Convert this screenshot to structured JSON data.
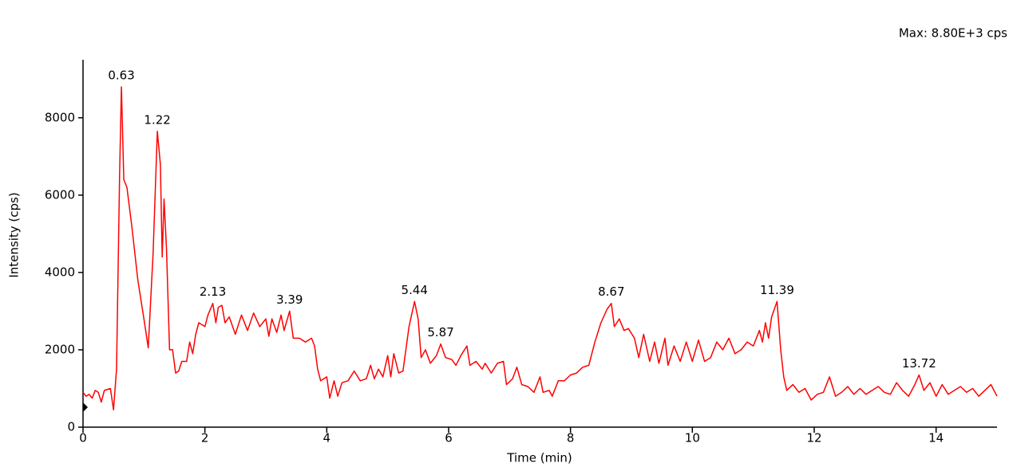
{
  "chart_data": {
    "type": "line",
    "max_label": "Max: 8.80E+3 cps",
    "x_label": "Time (min)",
    "y_label": "Intensity (cps)",
    "xlim": [
      0,
      15
    ],
    "ylim": [
      0,
      9500
    ],
    "xticks": [
      0,
      2,
      4,
      6,
      8,
      10,
      12,
      14
    ],
    "yticks": [
      0,
      2000,
      4000,
      6000,
      8000
    ],
    "x": [
      0,
      0.05,
      0.1,
      0.15,
      0.2,
      0.25,
      0.3,
      0.35,
      0.45,
      0.5,
      0.55,
      0.6,
      0.63,
      0.67,
      0.72,
      0.8,
      0.9,
      1.0,
      1.07,
      1.15,
      1.22,
      1.27,
      1.3,
      1.33,
      1.37,
      1.42,
      1.47,
      1.52,
      1.57,
      1.62,
      1.7,
      1.75,
      1.8,
      1.85,
      1.9,
      2.0,
      2.05,
      2.13,
      2.18,
      2.22,
      2.28,
      2.33,
      2.4,
      2.5,
      2.6,
      2.7,
      2.8,
      2.9,
      3.0,
      3.05,
      3.1,
      3.18,
      3.25,
      3.3,
      3.39,
      3.45,
      3.55,
      3.65,
      3.75,
      3.8,
      3.85,
      3.9,
      4.0,
      4.05,
      4.12,
      4.18,
      4.25,
      4.35,
      4.45,
      4.55,
      4.65,
      4.72,
      4.78,
      4.85,
      4.92,
      5.0,
      5.05,
      5.1,
      5.18,
      5.25,
      5.35,
      5.44,
      5.5,
      5.55,
      5.62,
      5.7,
      5.8,
      5.87,
      5.95,
      6.05,
      6.12,
      6.2,
      6.3,
      6.35,
      6.45,
      6.55,
      6.6,
      6.7,
      6.8,
      6.9,
      6.95,
      7.05,
      7.12,
      7.2,
      7.3,
      7.4,
      7.5,
      7.55,
      7.65,
      7.7,
      7.8,
      7.9,
      8.0,
      8.1,
      8.2,
      8.3,
      8.4,
      8.5,
      8.6,
      8.67,
      8.72,
      8.8,
      8.88,
      8.95,
      9.05,
      9.12,
      9.2,
      9.3,
      9.38,
      9.45,
      9.55,
      9.6,
      9.7,
      9.8,
      9.9,
      10.0,
      10.1,
      10.2,
      10.3,
      10.4,
      10.5,
      10.6,
      10.7,
      10.8,
      10.9,
      11.0,
      11.1,
      11.15,
      11.2,
      11.25,
      11.3,
      11.39,
      11.45,
      11.5,
      11.55,
      11.65,
      11.75,
      11.85,
      11.95,
      12.05,
      12.15,
      12.25,
      12.35,
      12.45,
      12.55,
      12.65,
      12.75,
      12.85,
      12.95,
      13.05,
      13.15,
      13.25,
      13.35,
      13.45,
      13.55,
      13.65,
      13.72,
      13.8,
      13.9,
      14.0,
      14.1,
      14.2,
      14.3,
      14.4,
      14.5,
      14.6,
      14.7,
      14.8,
      14.9,
      15.0
    ],
    "series": [
      {
        "color": "#ff0000",
        "values": [
          900,
          800,
          850,
          750,
          950,
          900,
          650,
          950,
          1000,
          450,
          1500,
          6500,
          8800,
          6400,
          6200,
          5200,
          3800,
          2800,
          2050,
          4500,
          7650,
          6800,
          4400,
          5900,
          4600,
          2000,
          2000,
          1400,
          1450,
          1700,
          1700,
          2200,
          1900,
          2400,
          2700,
          2600,
          2900,
          3200,
          2700,
          3100,
          3150,
          2700,
          2850,
          2400,
          2900,
          2500,
          2950,
          2600,
          2800,
          2350,
          2800,
          2450,
          2900,
          2500,
          3000,
          2300,
          2300,
          2200,
          2300,
          2100,
          1500,
          1200,
          1300,
          750,
          1200,
          800,
          1150,
          1200,
          1450,
          1200,
          1250,
          1600,
          1250,
          1500,
          1300,
          1850,
          1300,
          1900,
          1400,
          1450,
          2600,
          3250,
          2800,
          1800,
          2000,
          1650,
          1850,
          2150,
          1800,
          1750,
          1600,
          1850,
          2100,
          1600,
          1700,
          1500,
          1650,
          1400,
          1650,
          1700,
          1100,
          1250,
          1550,
          1100,
          1050,
          900,
          1300,
          900,
          950,
          800,
          1200,
          1200,
          1350,
          1400,
          1550,
          1600,
          2200,
          2700,
          3050,
          3200,
          2600,
          2800,
          2500,
          2550,
          2300,
          1800,
          2400,
          1700,
          2200,
          1650,
          2300,
          1600,
          2100,
          1700,
          2200,
          1700,
          2250,
          1700,
          1800,
          2200,
          2000,
          2300,
          1900,
          2000,
          2200,
          2100,
          2500,
          2200,
          2700,
          2300,
          2850,
          3250,
          2000,
          1300,
          950,
          1100,
          900,
          1000,
          700,
          850,
          900,
          1300,
          800,
          900,
          1050,
          850,
          1000,
          850,
          950,
          1050,
          900,
          850,
          1150,
          950,
          800,
          1100,
          1350,
          950,
          1150,
          800,
          1100,
          850,
          950,
          1050,
          900,
          1000,
          800,
          950,
          1100,
          800
        ]
      }
    ],
    "annotations": [
      {
        "x": 0.63,
        "y": 8800
      },
      {
        "x": 1.22,
        "y": 7650
      },
      {
        "x": 2.13,
        "y": 3200
      },
      {
        "x": 3.39,
        "y": 3000
      },
      {
        "x": 5.44,
        "y": 3250
      },
      {
        "x": 5.87,
        "y": 2150
      },
      {
        "x": 8.67,
        "y": 3200
      },
      {
        "x": 11.39,
        "y": 3250
      },
      {
        "x": 13.72,
        "y": 1350
      }
    ]
  }
}
